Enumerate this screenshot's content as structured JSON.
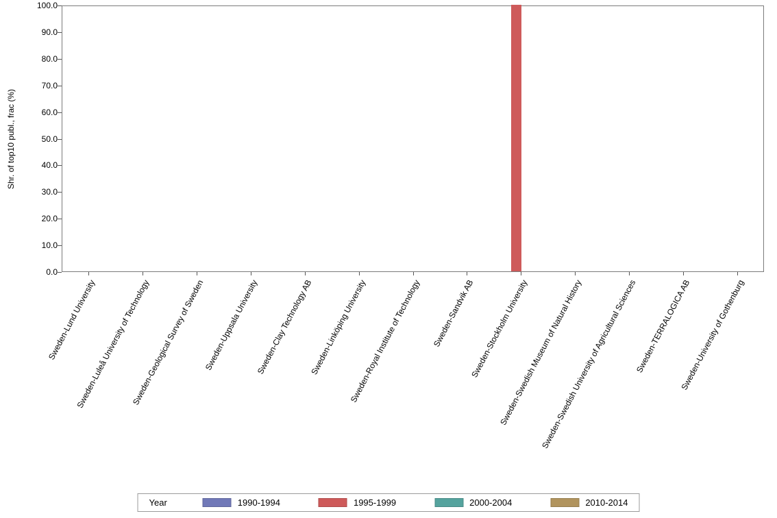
{
  "chart_data": {
    "type": "bar",
    "title": "",
    "xlabel": "",
    "ylabel": "Shr. of top10 publ., frac (%)",
    "ylim": [
      0,
      100
    ],
    "ytick_step": 10,
    "ytick_decimals": 1,
    "grid": false,
    "legend_title": "Year",
    "legend_position": "bottom",
    "categories": [
      "Sweden-Lund University",
      "Sweden-Luleå University of Technology",
      "Sweden-Geological Survey of Sweden",
      "Sweden-Uppsala University",
      "Sweden-Clay Technology AB",
      "Sweden-Linköping University",
      "Sweden-Royal Institute of Technology",
      "Sweden-Sandvik AB",
      "Sweden-Stockholm University",
      "Sweden-Swedish Museum of Natural History",
      "Sweden-Swedish University of Agricultural Sciences",
      "Sweden-TERRALOGICA AB",
      "Sweden-University of Gothenburg"
    ],
    "series": [
      {
        "name": "1990-1994",
        "color": "#7179B8",
        "values": [
          0,
          0,
          0,
          0,
          0,
          0,
          0,
          0,
          0,
          0,
          0,
          0,
          0
        ]
      },
      {
        "name": "1995-1999",
        "color": "#CE5A5A",
        "values": [
          0,
          0,
          0,
          0,
          0,
          0,
          0,
          0,
          100,
          0,
          0,
          0,
          0
        ]
      },
      {
        "name": "2000-2004",
        "color": "#55A39E",
        "values": [
          0,
          0,
          0,
          0,
          0,
          0,
          0,
          0,
          0,
          0,
          0,
          0,
          0
        ]
      },
      {
        "name": "2010-2014",
        "color": "#B1945E",
        "values": [
          0,
          0,
          0,
          0,
          0,
          0,
          0,
          0,
          0,
          0,
          0,
          0,
          0
        ]
      }
    ]
  }
}
